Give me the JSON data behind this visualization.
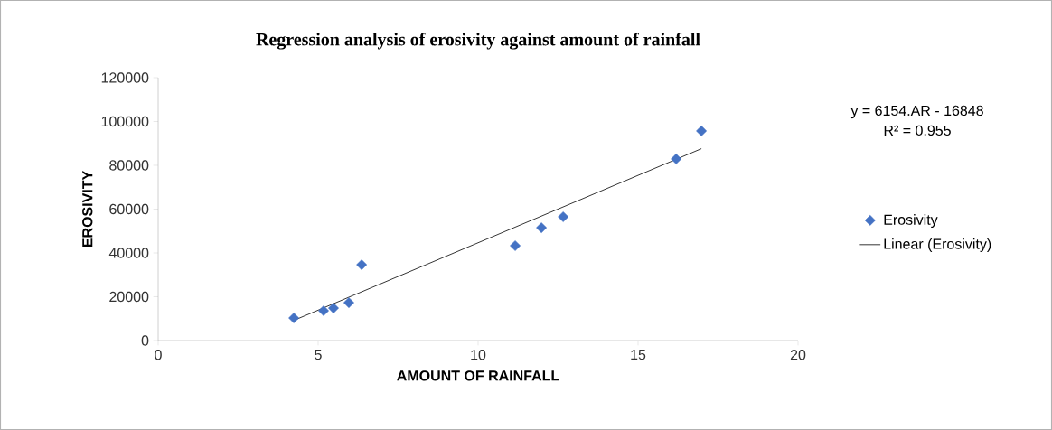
{
  "chart_data": {
    "type": "scatter",
    "title": "Regression analysis  of erosivity against amount of rainfall",
    "xlabel": "AMOUNT OF RAINFALL",
    "ylabel": "EROSIVITY",
    "xlim": [
      0,
      20
    ],
    "xticks": [
      0,
      5,
      10,
      15,
      20
    ],
    "ylim": [
      0,
      120000
    ],
    "yticks": [
      0,
      20000,
      40000,
      60000,
      80000,
      100000,
      120000
    ],
    "grid": false,
    "legend": "right",
    "annotations": [
      "y = 6154.AR - 16848",
      "R² = 0.955"
    ],
    "series": [
      {
        "name": "Erosivity",
        "color": "#4472c4",
        "marker": "diamond",
        "x": [
          4.24,
          5.17,
          5.48,
          5.96,
          6.36,
          11.16,
          11.98,
          12.66,
          16.19,
          16.98
        ],
        "values": [
          10300,
          13600,
          14800,
          17300,
          34600,
          43300,
          51500,
          56500,
          82900,
          95700
        ]
      },
      {
        "name": "Linear (Erosivity)",
        "type": "line",
        "color": "#000000",
        "marker": "none",
        "line_style": "solid",
        "x": [
          4.24,
          16.98
        ],
        "values": [
          9200,
          87600
        ]
      }
    ]
  }
}
